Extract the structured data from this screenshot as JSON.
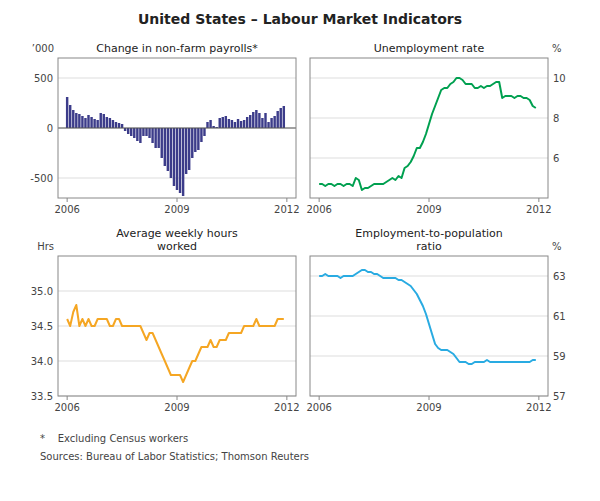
{
  "title": "United States – Labour Market Indicators",
  "annotations": [
    "*    Excluding Census workers",
    "Sources: Bureau of Labor Statistics; Thomson Reuters"
  ],
  "chart_data": [
    {
      "type": "bar",
      "title": "Change in non-farm payrolls*",
      "y_label": "’000",
      "color": "#3c3c8a",
      "x": [
        2006.0,
        2006.083,
        2006.167,
        2006.25,
        2006.333,
        2006.417,
        2006.5,
        2006.583,
        2006.667,
        2006.75,
        2006.833,
        2006.917,
        2007.0,
        2007.083,
        2007.167,
        2007.25,
        2007.333,
        2007.417,
        2007.5,
        2007.583,
        2007.667,
        2007.75,
        2007.833,
        2007.917,
        2008.0,
        2008.083,
        2008.167,
        2008.25,
        2008.333,
        2008.417,
        2008.5,
        2008.583,
        2008.667,
        2008.75,
        2008.833,
        2008.917,
        2009.0,
        2009.083,
        2009.167,
        2009.25,
        2009.333,
        2009.417,
        2009.5,
        2009.583,
        2009.667,
        2009.75,
        2009.833,
        2009.917,
        2010.0,
        2010.083,
        2010.167,
        2010.25,
        2010.333,
        2010.417,
        2010.5,
        2010.583,
        2010.667,
        2010.75,
        2010.833,
        2010.917,
        2011.0,
        2011.083,
        2011.167,
        2011.25,
        2011.333,
        2011.417,
        2011.5,
        2011.583,
        2011.667,
        2011.75,
        2011.833,
        2011.917
      ],
      "values": [
        310,
        230,
        180,
        150,
        140,
        120,
        100,
        130,
        110,
        90,
        80,
        150,
        140,
        110,
        100,
        80,
        60,
        50,
        40,
        -30,
        -60,
        -80,
        -100,
        -130,
        -150,
        -80,
        -80,
        -100,
        -150,
        -200,
        -200,
        -300,
        -380,
        -430,
        -500,
        -580,
        -620,
        -650,
        -680,
        -460,
        -420,
        -300,
        -240,
        -220,
        -140,
        -80,
        60,
        80,
        20,
        10,
        100,
        110,
        120,
        90,
        80,
        60,
        90,
        70,
        80,
        110,
        130,
        160,
        180,
        150,
        100,
        150,
        60,
        100,
        120,
        170,
        200,
        220
      ],
      "xlim": [
        2005.75,
        2012.25
      ],
      "xticks": [
        2006,
        2009,
        2012
      ],
      "ylim": [
        -700,
        700
      ],
      "yticks": [
        -500,
        0,
        500
      ],
      "grid": true
    },
    {
      "type": "line",
      "title": "Unemployment rate",
      "y_label": "%",
      "color": "#00a050",
      "x": [
        2006.0,
        2006.083,
        2006.167,
        2006.25,
        2006.333,
        2006.417,
        2006.5,
        2006.583,
        2006.667,
        2006.75,
        2006.833,
        2006.917,
        2007.0,
        2007.083,
        2007.167,
        2007.25,
        2007.333,
        2007.417,
        2007.5,
        2007.583,
        2007.667,
        2007.75,
        2007.833,
        2007.917,
        2008.0,
        2008.083,
        2008.167,
        2008.25,
        2008.333,
        2008.417,
        2008.5,
        2008.583,
        2008.667,
        2008.75,
        2008.833,
        2008.917,
        2009.0,
        2009.083,
        2009.167,
        2009.25,
        2009.333,
        2009.417,
        2009.5,
        2009.583,
        2009.667,
        2009.75,
        2009.833,
        2009.917,
        2010.0,
        2010.083,
        2010.167,
        2010.25,
        2010.333,
        2010.417,
        2010.5,
        2010.583,
        2010.667,
        2010.75,
        2010.833,
        2010.917,
        2011.0,
        2011.083,
        2011.167,
        2011.25,
        2011.333,
        2011.417,
        2011.5,
        2011.583,
        2011.667,
        2011.75,
        2011.833,
        2011.917
      ],
      "values": [
        4.7,
        4.7,
        4.6,
        4.7,
        4.7,
        4.6,
        4.7,
        4.7,
        4.6,
        4.7,
        4.7,
        4.6,
        5.0,
        4.9,
        4.4,
        4.5,
        4.5,
        4.6,
        4.7,
        4.7,
        4.7,
        4.7,
        4.8,
        4.9,
        5.0,
        4.9,
        5.1,
        5.0,
        5.5,
        5.6,
        5.8,
        6.1,
        6.5,
        6.5,
        6.8,
        7.2,
        7.7,
        8.2,
        8.6,
        9.0,
        9.4,
        9.5,
        9.5,
        9.7,
        9.8,
        10.0,
        10.0,
        9.9,
        9.7,
        9.7,
        9.7,
        9.5,
        9.5,
        9.6,
        9.5,
        9.6,
        9.6,
        9.7,
        9.8,
        9.8,
        9.0,
        9.1,
        9.1,
        9.1,
        9.0,
        9.1,
        9.1,
        9.0,
        9.0,
        8.9,
        8.6,
        8.5
      ],
      "xlim": [
        2005.75,
        2012.25
      ],
      "xticks": [
        2006,
        2009,
        2012
      ],
      "ylim": [
        4,
        11
      ],
      "yticks": [
        6,
        8,
        10
      ],
      "grid": true
    },
    {
      "type": "line",
      "title": "Average weekly hours\nworked",
      "y_label": "Hrs",
      "color": "#f5a623",
      "x": [
        2006.0,
        2006.083,
        2006.167,
        2006.25,
        2006.333,
        2006.417,
        2006.5,
        2006.583,
        2006.667,
        2006.75,
        2006.833,
        2006.917,
        2007.0,
        2007.083,
        2007.167,
        2007.25,
        2007.333,
        2007.417,
        2007.5,
        2007.583,
        2007.667,
        2007.75,
        2007.833,
        2007.917,
        2008.0,
        2008.083,
        2008.167,
        2008.25,
        2008.333,
        2008.417,
        2008.5,
        2008.583,
        2008.667,
        2008.75,
        2008.833,
        2008.917,
        2009.0,
        2009.083,
        2009.167,
        2009.25,
        2009.333,
        2009.417,
        2009.5,
        2009.583,
        2009.667,
        2009.75,
        2009.833,
        2009.917,
        2010.0,
        2010.083,
        2010.167,
        2010.25,
        2010.333,
        2010.417,
        2010.5,
        2010.583,
        2010.667,
        2010.75,
        2010.833,
        2010.917,
        2011.0,
        2011.083,
        2011.167,
        2011.25,
        2011.333,
        2011.417,
        2011.5,
        2011.583,
        2011.667,
        2011.75,
        2011.833,
        2011.917
      ],
      "values": [
        34.6,
        34.5,
        34.7,
        34.8,
        34.5,
        34.6,
        34.5,
        34.6,
        34.5,
        34.5,
        34.6,
        34.6,
        34.6,
        34.6,
        34.5,
        34.5,
        34.6,
        34.6,
        34.5,
        34.5,
        34.5,
        34.5,
        34.5,
        34.5,
        34.5,
        34.4,
        34.3,
        34.4,
        34.4,
        34.3,
        34.2,
        34.1,
        34.0,
        33.9,
        33.8,
        33.8,
        33.8,
        33.8,
        33.7,
        33.8,
        33.9,
        34.0,
        34.0,
        34.1,
        34.2,
        34.2,
        34.2,
        34.3,
        34.2,
        34.2,
        34.3,
        34.3,
        34.3,
        34.4,
        34.4,
        34.4,
        34.4,
        34.4,
        34.5,
        34.5,
        34.5,
        34.5,
        34.6,
        34.5,
        34.5,
        34.5,
        34.5,
        34.5,
        34.5,
        34.6,
        34.6,
        34.6
      ],
      "xlim": [
        2005.75,
        2012.25
      ],
      "xticks": [
        2006,
        2009,
        2012
      ],
      "ylim": [
        33.5,
        35.5
      ],
      "yticks": [
        33.5,
        {
          "value": 34.0,
          "label": "34.0"
        },
        34.5,
        {
          "value": 35.0,
          "label": "35.0"
        }
      ],
      "grid": true
    },
    {
      "type": "line",
      "title": "Employment-to-population\nratio",
      "y_label": "%",
      "color": "#29abe2",
      "x": [
        2006.0,
        2006.083,
        2006.167,
        2006.25,
        2006.333,
        2006.417,
        2006.5,
        2006.583,
        2006.667,
        2006.75,
        2006.833,
        2006.917,
        2007.0,
        2007.083,
        2007.167,
        2007.25,
        2007.333,
        2007.417,
        2007.5,
        2007.583,
        2007.667,
        2007.75,
        2007.833,
        2007.917,
        2008.0,
        2008.083,
        2008.167,
        2008.25,
        2008.333,
        2008.417,
        2008.5,
        2008.583,
        2008.667,
        2008.75,
        2008.833,
        2008.917,
        2009.0,
        2009.083,
        2009.167,
        2009.25,
        2009.333,
        2009.417,
        2009.5,
        2009.583,
        2009.667,
        2009.75,
        2009.833,
        2009.917,
        2010.0,
        2010.083,
        2010.167,
        2010.25,
        2010.333,
        2010.417,
        2010.5,
        2010.583,
        2010.667,
        2010.75,
        2010.833,
        2010.917,
        2011.0,
        2011.083,
        2011.167,
        2011.25,
        2011.333,
        2011.417,
        2011.5,
        2011.583,
        2011.667,
        2011.75,
        2011.833,
        2011.917
      ],
      "values": [
        63.0,
        63.0,
        63.1,
        63.0,
        63.0,
        63.0,
        63.0,
        62.9,
        63.0,
        63.0,
        63.0,
        63.0,
        63.1,
        63.2,
        63.3,
        63.3,
        63.2,
        63.2,
        63.1,
        63.1,
        63.0,
        62.9,
        62.9,
        62.9,
        62.9,
        62.9,
        62.8,
        62.8,
        62.7,
        62.6,
        62.5,
        62.3,
        62.1,
        61.8,
        61.5,
        61.1,
        60.6,
        60.1,
        59.6,
        59.4,
        59.3,
        59.3,
        59.3,
        59.2,
        59.1,
        58.9,
        58.7,
        58.7,
        58.7,
        58.6,
        58.6,
        58.7,
        58.7,
        58.7,
        58.7,
        58.8,
        58.7,
        58.7,
        58.7,
        58.7,
        58.7,
        58.7,
        58.7,
        58.7,
        58.7,
        58.7,
        58.7,
        58.7,
        58.7,
        58.7,
        58.8,
        58.8
      ],
      "xlim": [
        2005.75,
        2012.25
      ],
      "xticks": [
        2006,
        2009,
        2012
      ],
      "ylim": [
        57,
        64
      ],
      "yticks": [
        57,
        59,
        61,
        63
      ],
      "grid": true
    }
  ]
}
